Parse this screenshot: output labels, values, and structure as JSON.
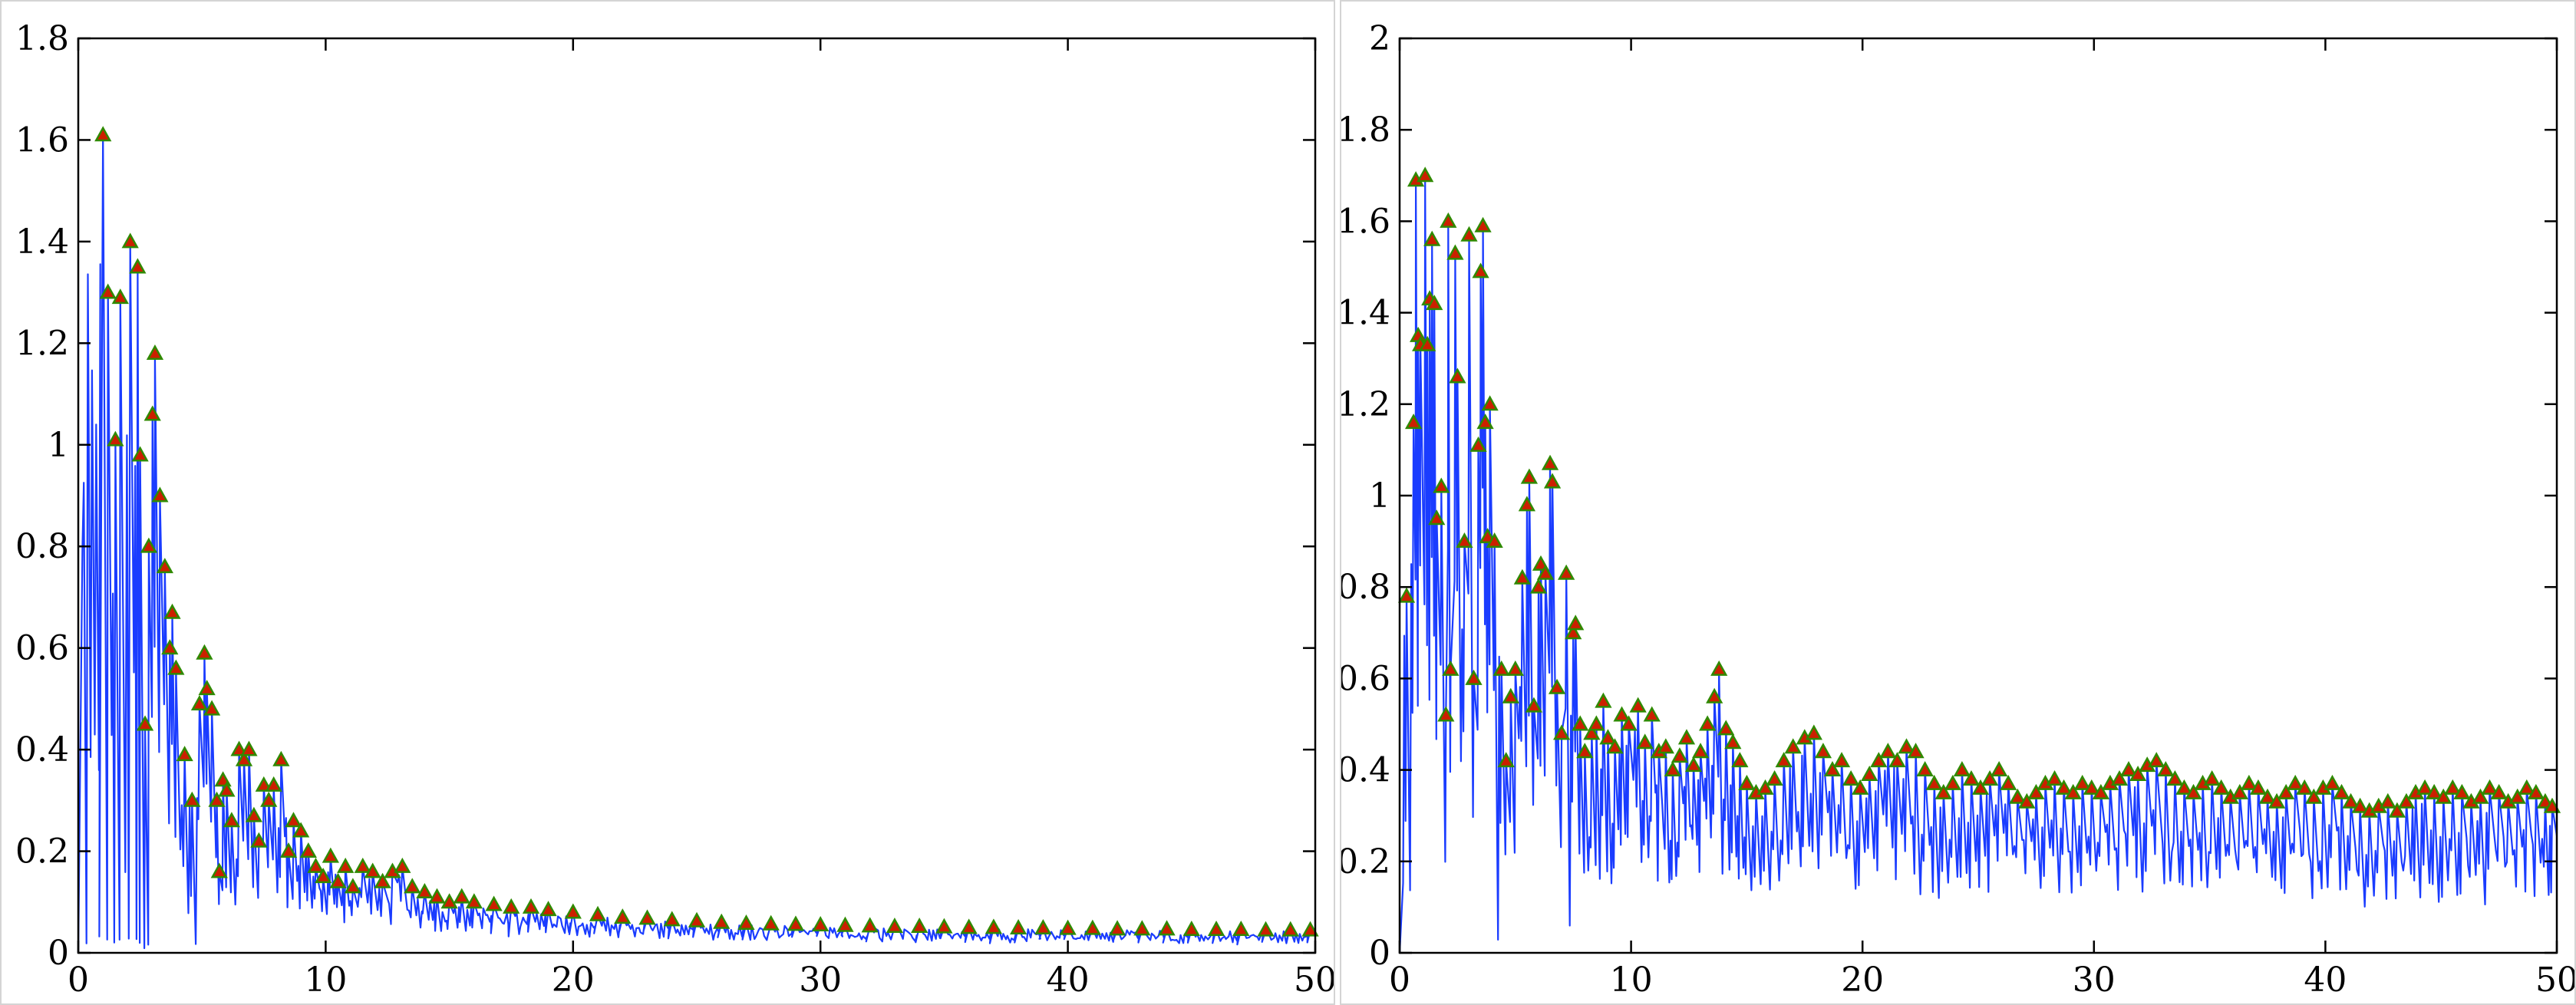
{
  "colors": {
    "line": "#1a3cff",
    "marker_fill": "#cc1f00",
    "marker_edge": "#2f8a00",
    "axis": "#000000"
  },
  "chart_data": [
    {
      "type": "line",
      "markers": "triangle-up at local peaks",
      "xlim": [
        0,
        50
      ],
      "ylim": [
        0,
        1.8
      ],
      "xticks": [
        "0",
        "10",
        "20",
        "30",
        "40",
        "50"
      ],
      "yticks": [
        "0",
        "0.2",
        "0.4",
        "0.6",
        "0.8",
        "1",
        "1.2",
        "1.4",
        "1.6",
        "1.8"
      ],
      "grid": false,
      "series": [
        {
          "peaks": [
            [
              1.0,
              1.61
            ],
            [
              1.2,
              1.3
            ],
            [
              1.5,
              1.01
            ],
            [
              1.7,
              1.29
            ],
            [
              2.1,
              1.4
            ],
            [
              2.4,
              1.35
            ],
            [
              2.5,
              0.98
            ],
            [
              2.7,
              0.45
            ],
            [
              2.85,
              0.8
            ],
            [
              3.0,
              1.06
            ],
            [
              3.1,
              1.18
            ],
            [
              3.3,
              0.9
            ],
            [
              3.5,
              0.76
            ],
            [
              3.7,
              0.6
            ],
            [
              3.8,
              0.67
            ],
            [
              3.95,
              0.56
            ],
            [
              4.3,
              0.39
            ],
            [
              4.6,
              0.3
            ],
            [
              4.9,
              0.49
            ],
            [
              5.1,
              0.59
            ],
            [
              5.2,
              0.52
            ],
            [
              5.4,
              0.48
            ],
            [
              5.6,
              0.3
            ],
            [
              5.7,
              0.16
            ],
            [
              5.85,
              0.34
            ],
            [
              6.0,
              0.32
            ],
            [
              6.2,
              0.26
            ],
            [
              6.5,
              0.4
            ],
            [
              6.7,
              0.38
            ],
            [
              6.9,
              0.4
            ],
            [
              7.1,
              0.27
            ],
            [
              7.3,
              0.22
            ],
            [
              7.5,
              0.33
            ],
            [
              7.7,
              0.3
            ],
            [
              7.9,
              0.33
            ],
            [
              8.2,
              0.38
            ],
            [
              8.5,
              0.2
            ],
            [
              8.7,
              0.26
            ],
            [
              9.0,
              0.24
            ],
            [
              9.3,
              0.2
            ],
            [
              9.6,
              0.17
            ],
            [
              9.9,
              0.15
            ],
            [
              10.2,
              0.19
            ],
            [
              10.5,
              0.14
            ],
            [
              10.8,
              0.17
            ],
            [
              11.1,
              0.13
            ],
            [
              11.5,
              0.17
            ],
            [
              11.9,
              0.16
            ],
            [
              12.3,
              0.14
            ],
            [
              12.7,
              0.16
            ],
            [
              13.1,
              0.17
            ],
            [
              13.5,
              0.13
            ],
            [
              14.0,
              0.12
            ],
            [
              14.5,
              0.11
            ],
            [
              15.0,
              0.1
            ],
            [
              15.5,
              0.11
            ],
            [
              16.0,
              0.1
            ],
            [
              16.8,
              0.095
            ],
            [
              17.5,
              0.09
            ],
            [
              18.3,
              0.09
            ],
            [
              19.0,
              0.085
            ],
            [
              20.0,
              0.08
            ],
            [
              21.0,
              0.075
            ],
            [
              22.0,
              0.07
            ],
            [
              23.0,
              0.068
            ],
            [
              24.0,
              0.065
            ],
            [
              25.0,
              0.063
            ],
            [
              26.0,
              0.06
            ],
            [
              27.0,
              0.058
            ],
            [
              28.0,
              0.057
            ],
            [
              29.0,
              0.056
            ],
            [
              30.0,
              0.055
            ],
            [
              31.0,
              0.054
            ],
            [
              32.0,
              0.053
            ],
            [
              33.0,
              0.052
            ],
            [
              34.0,
              0.052
            ],
            [
              35.0,
              0.051
            ],
            [
              36.0,
              0.05
            ],
            [
              37.0,
              0.05
            ],
            [
              38.0,
              0.049
            ],
            [
              39.0,
              0.049
            ],
            [
              40.0,
              0.048
            ],
            [
              41.0,
              0.048
            ],
            [
              42.0,
              0.047
            ],
            [
              43.0,
              0.047
            ],
            [
              44.0,
              0.047
            ],
            [
              45.0,
              0.046
            ],
            [
              46.0,
              0.046
            ],
            [
              47.0,
              0.046
            ],
            [
              48.0,
              0.045
            ],
            [
              49.0,
              0.045
            ],
            [
              49.8,
              0.045
            ]
          ]
        }
      ]
    },
    {
      "type": "line",
      "markers": "triangle-up at local peaks",
      "xlim": [
        0,
        50
      ],
      "ylim": [
        0,
        2
      ],
      "xticks": [
        "0",
        "10",
        "20",
        "30",
        "40",
        "50"
      ],
      "yticks": [
        "0",
        "0.2",
        "0.4",
        "0.6",
        "0.8",
        "1",
        "1.2",
        "1.4",
        "1.6",
        "1.8",
        "2"
      ],
      "grid": false,
      "series": [
        {
          "peaks": [
            [
              0.3,
              0.78
            ],
            [
              0.6,
              1.16
            ],
            [
              0.7,
              1.69
            ],
            [
              0.8,
              1.35
            ],
            [
              0.9,
              1.33
            ],
            [
              1.1,
              1.7
            ],
            [
              1.2,
              1.33
            ],
            [
              1.3,
              1.43
            ],
            [
              1.4,
              1.56
            ],
            [
              1.5,
              1.42
            ],
            [
              1.6,
              0.95
            ],
            [
              1.8,
              1.02
            ],
            [
              2.0,
              0.52
            ],
            [
              2.1,
              1.6
            ],
            [
              2.2,
              0.62
            ],
            [
              2.4,
              1.53
            ],
            [
              2.5,
              1.26
            ],
            [
              2.8,
              0.9
            ],
            [
              3.0,
              1.57
            ],
            [
              3.2,
              0.6
            ],
            [
              3.4,
              1.11
            ],
            [
              3.5,
              1.49
            ],
            [
              3.6,
              1.59
            ],
            [
              3.7,
              1.16
            ],
            [
              3.8,
              0.91
            ],
            [
              3.9,
              1.2
            ],
            [
              4.1,
              0.9
            ],
            [
              4.4,
              0.62
            ],
            [
              4.6,
              0.42
            ],
            [
              4.8,
              0.56
            ],
            [
              5.0,
              0.62
            ],
            [
              5.3,
              0.82
            ],
            [
              5.5,
              0.98
            ],
            [
              5.6,
              1.04
            ],
            [
              5.8,
              0.54
            ],
            [
              6.0,
              0.8
            ],
            [
              6.1,
              0.85
            ],
            [
              6.3,
              0.83
            ],
            [
              6.5,
              1.07
            ],
            [
              6.6,
              1.03
            ],
            [
              6.8,
              0.58
            ],
            [
              7.0,
              0.48
            ],
            [
              7.2,
              0.83
            ],
            [
              7.5,
              0.7
            ],
            [
              7.6,
              0.72
            ],
            [
              7.8,
              0.5
            ],
            [
              8.0,
              0.44
            ],
            [
              8.3,
              0.48
            ],
            [
              8.5,
              0.5
            ],
            [
              8.8,
              0.55
            ],
            [
              9.0,
              0.47
            ],
            [
              9.3,
              0.45
            ],
            [
              9.6,
              0.52
            ],
            [
              9.9,
              0.5
            ],
            [
              10.3,
              0.54
            ],
            [
              10.6,
              0.46
            ],
            [
              10.9,
              0.52
            ],
            [
              11.2,
              0.44
            ],
            [
              11.5,
              0.45
            ],
            [
              11.8,
              0.4
            ],
            [
              12.1,
              0.43
            ],
            [
              12.4,
              0.47
            ],
            [
              12.7,
              0.41
            ],
            [
              13.0,
              0.44
            ],
            [
              13.3,
              0.5
            ],
            [
              13.6,
              0.56
            ],
            [
              13.8,
              0.62
            ],
            [
              14.1,
              0.49
            ],
            [
              14.4,
              0.46
            ],
            [
              14.7,
              0.42
            ],
            [
              15.0,
              0.37
            ],
            [
              15.4,
              0.35
            ],
            [
              15.8,
              0.36
            ],
            [
              16.2,
              0.38
            ],
            [
              16.6,
              0.42
            ],
            [
              17.0,
              0.45
            ],
            [
              17.5,
              0.47
            ],
            [
              17.9,
              0.48
            ],
            [
              18.3,
              0.44
            ],
            [
              18.7,
              0.4
            ],
            [
              19.1,
              0.42
            ],
            [
              19.5,
              0.38
            ],
            [
              19.9,
              0.36
            ],
            [
              20.3,
              0.39
            ],
            [
              20.7,
              0.42
            ],
            [
              21.1,
              0.44
            ],
            [
              21.5,
              0.42
            ],
            [
              21.9,
              0.45
            ],
            [
              22.3,
              0.44
            ],
            [
              22.7,
              0.4
            ],
            [
              23.1,
              0.37
            ],
            [
              23.5,
              0.35
            ],
            [
              23.9,
              0.37
            ],
            [
              24.3,
              0.4
            ],
            [
              24.7,
              0.38
            ],
            [
              25.1,
              0.36
            ],
            [
              25.5,
              0.38
            ],
            [
              25.9,
              0.4
            ],
            [
              26.3,
              0.37
            ],
            [
              26.7,
              0.34
            ],
            [
              27.1,
              0.33
            ],
            [
              27.5,
              0.35
            ],
            [
              27.9,
              0.37
            ],
            [
              28.3,
              0.38
            ],
            [
              28.7,
              0.36
            ],
            [
              29.1,
              0.35
            ],
            [
              29.5,
              0.37
            ],
            [
              29.9,
              0.36
            ],
            [
              30.3,
              0.35
            ],
            [
              30.7,
              0.37
            ],
            [
              31.1,
              0.38
            ],
            [
              31.5,
              0.4
            ],
            [
              31.9,
              0.39
            ],
            [
              32.3,
              0.41
            ],
            [
              32.7,
              0.42
            ],
            [
              33.1,
              0.4
            ],
            [
              33.5,
              0.38
            ],
            [
              33.9,
              0.36
            ],
            [
              34.3,
              0.35
            ],
            [
              34.7,
              0.37
            ],
            [
              35.1,
              0.38
            ],
            [
              35.5,
              0.36
            ],
            [
              35.9,
              0.34
            ],
            [
              36.3,
              0.35
            ],
            [
              36.7,
              0.37
            ],
            [
              37.1,
              0.36
            ],
            [
              37.5,
              0.34
            ],
            [
              37.9,
              0.33
            ],
            [
              38.3,
              0.35
            ],
            [
              38.7,
              0.37
            ],
            [
              39.1,
              0.36
            ],
            [
              39.5,
              0.34
            ],
            [
              39.9,
              0.36
            ],
            [
              40.3,
              0.37
            ],
            [
              40.7,
              0.35
            ],
            [
              41.1,
              0.33
            ],
            [
              41.5,
              0.32
            ],
            [
              41.9,
              0.31
            ],
            [
              42.3,
              0.32
            ],
            [
              42.7,
              0.33
            ],
            [
              43.1,
              0.31
            ],
            [
              43.5,
              0.33
            ],
            [
              43.9,
              0.35
            ],
            [
              44.3,
              0.36
            ],
            [
              44.7,
              0.35
            ],
            [
              45.1,
              0.34
            ],
            [
              45.5,
              0.36
            ],
            [
              45.9,
              0.35
            ],
            [
              46.3,
              0.33
            ],
            [
              46.7,
              0.34
            ],
            [
              47.1,
              0.36
            ],
            [
              47.5,
              0.35
            ],
            [
              47.9,
              0.33
            ],
            [
              48.3,
              0.34
            ],
            [
              48.7,
              0.36
            ],
            [
              49.1,
              0.35
            ],
            [
              49.5,
              0.33
            ],
            [
              49.8,
              0.32
            ]
          ]
        }
      ]
    }
  ]
}
